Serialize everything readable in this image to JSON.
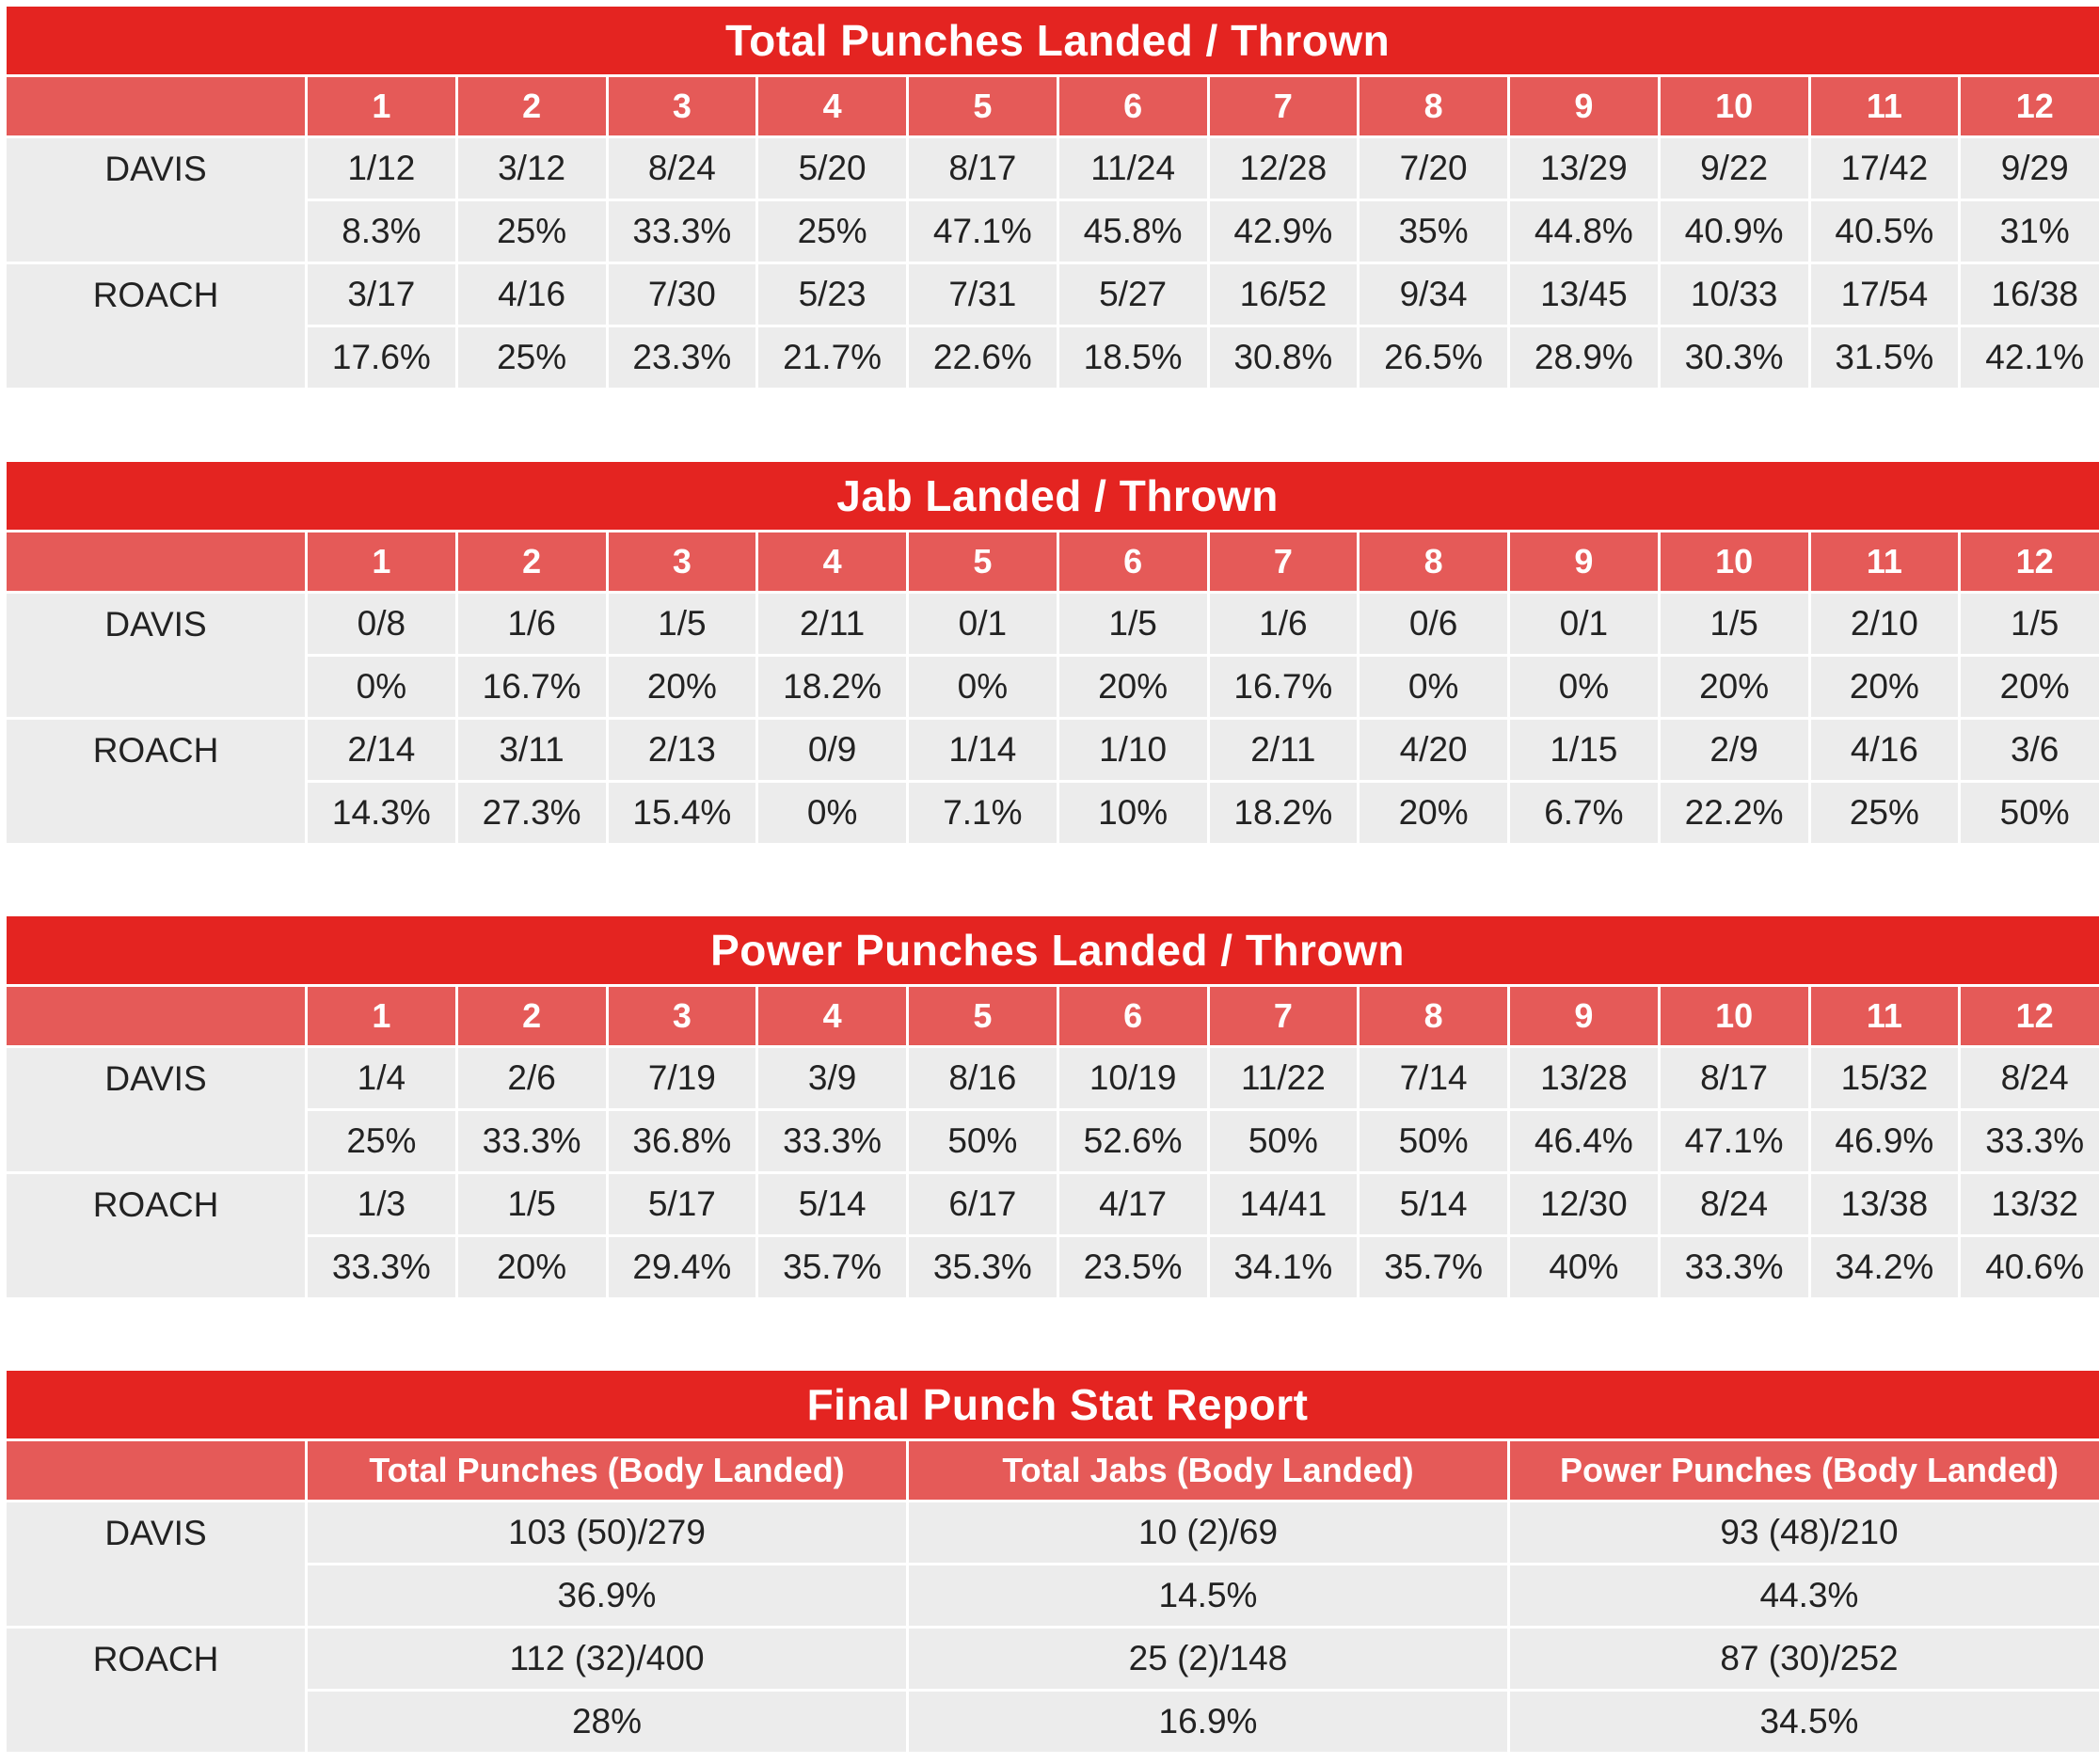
{
  "chart_data": [
    {
      "type": "table",
      "title": "Total Punches Landed / Thrown",
      "columns": [
        "",
        "1",
        "2",
        "3",
        "4",
        "5",
        "6",
        "7",
        "8",
        "9",
        "10",
        "11",
        "12"
      ],
      "rows": [
        {
          "fighter": "DAVIS",
          "landed_thrown": [
            "1/12",
            "3/12",
            "8/24",
            "5/20",
            "8/17",
            "11/24",
            "12/28",
            "7/20",
            "13/29",
            "9/22",
            "17/42",
            "9/29"
          ],
          "percent": [
            "8.3%",
            "25%",
            "33.3%",
            "25%",
            "47.1%",
            "45.8%",
            "42.9%",
            "35%",
            "44.8%",
            "40.9%",
            "40.5%",
            "31%"
          ]
        },
        {
          "fighter": "ROACH",
          "landed_thrown": [
            "3/17",
            "4/16",
            "7/30",
            "5/23",
            "7/31",
            "5/27",
            "16/52",
            "9/34",
            "13/45",
            "10/33",
            "17/54",
            "16/38"
          ],
          "percent": [
            "17.6%",
            "25%",
            "23.3%",
            "21.7%",
            "22.6%",
            "18.5%",
            "30.8%",
            "26.5%",
            "28.9%",
            "30.3%",
            "31.5%",
            "42.1%"
          ]
        }
      ]
    },
    {
      "type": "table",
      "title": "Jab Landed / Thrown",
      "columns": [
        "",
        "1",
        "2",
        "3",
        "4",
        "5",
        "6",
        "7",
        "8",
        "9",
        "10",
        "11",
        "12"
      ],
      "rows": [
        {
          "fighter": "DAVIS",
          "landed_thrown": [
            "0/8",
            "1/6",
            "1/5",
            "2/11",
            "0/1",
            "1/5",
            "1/6",
            "0/6",
            "0/1",
            "1/5",
            "2/10",
            "1/5"
          ],
          "percent": [
            "0%",
            "16.7%",
            "20%",
            "18.2%",
            "0%",
            "20%",
            "16.7%",
            "0%",
            "0%",
            "20%",
            "20%",
            "20%"
          ]
        },
        {
          "fighter": "ROACH",
          "landed_thrown": [
            "2/14",
            "3/11",
            "2/13",
            "0/9",
            "1/14",
            "1/10",
            "2/11",
            "4/20",
            "1/15",
            "2/9",
            "4/16",
            "3/6"
          ],
          "percent": [
            "14.3%",
            "27.3%",
            "15.4%",
            "0%",
            "7.1%",
            "10%",
            "18.2%",
            "20%",
            "6.7%",
            "22.2%",
            "25%",
            "50%"
          ]
        }
      ]
    },
    {
      "type": "table",
      "title": "Power Punches Landed / Thrown",
      "columns": [
        "",
        "1",
        "2",
        "3",
        "4",
        "5",
        "6",
        "7",
        "8",
        "9",
        "10",
        "11",
        "12"
      ],
      "rows": [
        {
          "fighter": "DAVIS",
          "landed_thrown": [
            "1/4",
            "2/6",
            "7/19",
            "3/9",
            "8/16",
            "10/19",
            "11/22",
            "7/14",
            "13/28",
            "8/17",
            "15/32",
            "8/24"
          ],
          "percent": [
            "25%",
            "33.3%",
            "36.8%",
            "33.3%",
            "50%",
            "52.6%",
            "50%",
            "50%",
            "46.4%",
            "47.1%",
            "46.9%",
            "33.3%"
          ]
        },
        {
          "fighter": "ROACH",
          "landed_thrown": [
            "1/3",
            "1/5",
            "5/17",
            "5/14",
            "6/17",
            "4/17",
            "14/41",
            "5/14",
            "12/30",
            "8/24",
            "13/38",
            "13/32"
          ],
          "percent": [
            "33.3%",
            "20%",
            "29.4%",
            "35.7%",
            "35.3%",
            "23.5%",
            "34.1%",
            "35.7%",
            "40%",
            "33.3%",
            "34.2%",
            "40.6%"
          ]
        }
      ]
    },
    {
      "type": "table",
      "title": "Final Punch Stat Report",
      "columns": [
        "",
        "Total Punches (Body Landed)",
        "Total Jabs (Body Landed)",
        "Power Punches (Body Landed)"
      ],
      "rows": [
        {
          "fighter": "DAVIS",
          "landed_thrown": [
            "103 (50)/279",
            "10 (2)/69",
            "93 (48)/210"
          ],
          "percent": [
            "36.9%",
            "14.5%",
            "44.3%"
          ]
        },
        {
          "fighter": "ROACH",
          "landed_thrown": [
            "112 (32)/400",
            "25 (2)/148",
            "87 (30)/252"
          ],
          "percent": [
            "28%",
            "16.9%",
            "34.5%"
          ]
        }
      ]
    }
  ]
}
